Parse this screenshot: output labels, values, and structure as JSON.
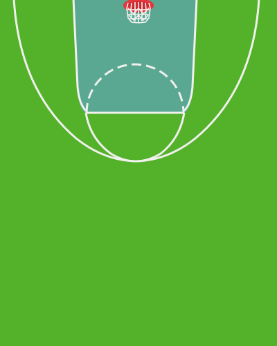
{
  "court": {
    "floor_color": "#53b12a",
    "paint_color": "#5aa891",
    "line_color": "#f0f0ec",
    "rim_color": "#e8333a",
    "net_color": "#f2f2f2"
  },
  "hoop": {
    "icon": "basketball-hoop-icon"
  }
}
